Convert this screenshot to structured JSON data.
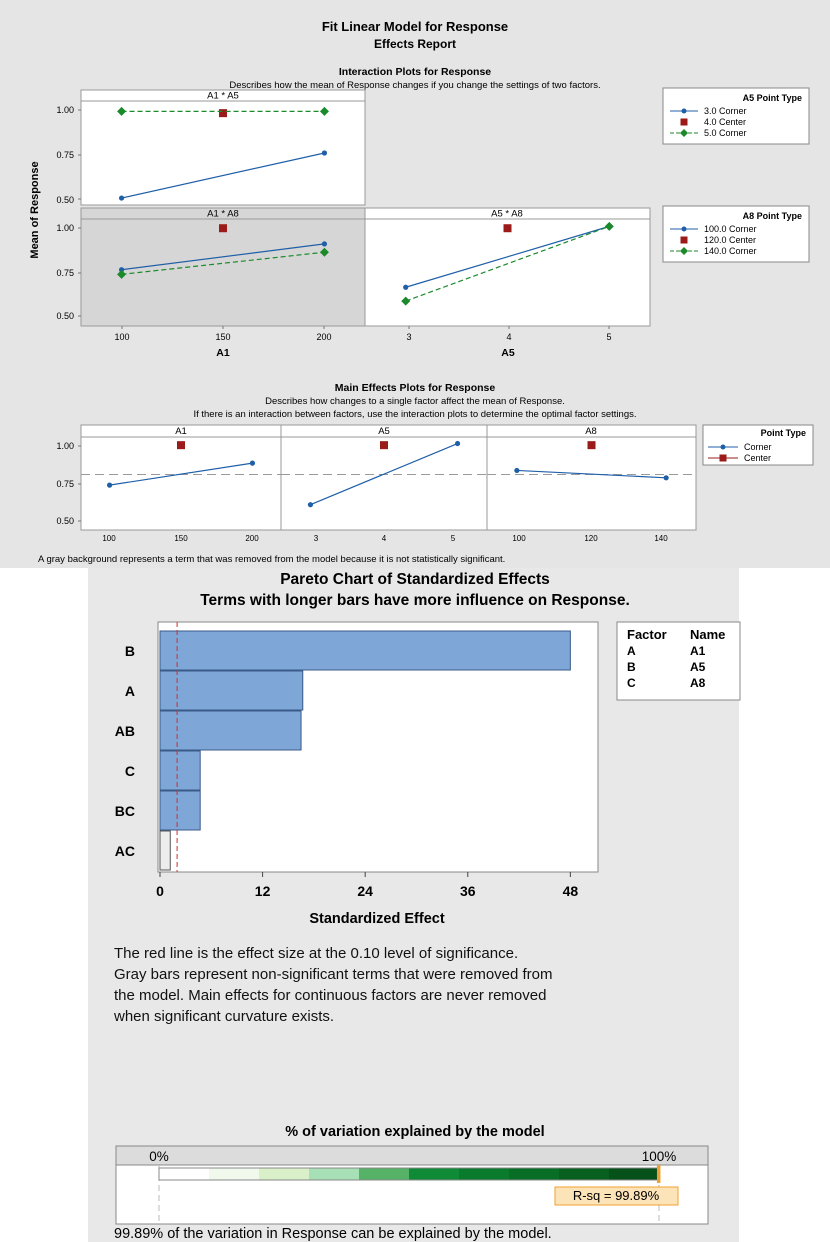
{
  "report": {
    "title": "Fit Linear Model for Response",
    "subtitle": "Effects Report",
    "footnote": "A gray background represents a term that was removed from the model because it is not statistically significant."
  },
  "interaction": {
    "title": "Interaction Plots for Response",
    "description": "Describes how the mean of Response changes if you change the settings of two factors.",
    "ylabel": "Mean of Response",
    "yticks": [
      "1.00",
      "0.75",
      "0.50"
    ],
    "panels": {
      "a1a5": {
        "title": "A1 * A5",
        "xrange": [
          80,
          220
        ],
        "removed": false
      },
      "a1a8": {
        "title": "A1 * A8",
        "xrange": [
          80,
          220
        ],
        "removed": true
      },
      "a5a8": {
        "title": "A5 * A8",
        "xrange": [
          2.6,
          5.4
        ],
        "removed": false
      }
    },
    "xaxis_a1": {
      "label": "A1",
      "ticks": [
        "100",
        "150",
        "200"
      ]
    },
    "xaxis_a5": {
      "label": "A5",
      "ticks": [
        "3",
        "4",
        "5"
      ]
    },
    "legend_a5": {
      "title": "A5  Point Type",
      "entries": [
        "3.0  Corner",
        "4.0  Center",
        "5.0  Corner"
      ]
    },
    "legend_a8": {
      "title": "A8  Point Type",
      "entries": [
        "100.0  Corner",
        "120.0  Center",
        "140.0  Corner"
      ]
    }
  },
  "main_effects": {
    "title": "Main Effects Plots for Response",
    "description1": "Describes how changes to a single factor affect the mean of Response.",
    "description2": "If there is an interaction between factors, use the interaction plots to determine the optimal factor settings.",
    "yticks": [
      "1.00",
      "0.75",
      "0.50"
    ],
    "panels": [
      {
        "title": "A1",
        "ticks": [
          "100",
          "150",
          "200"
        ]
      },
      {
        "title": "A5",
        "ticks": [
          "3",
          "4",
          "5"
        ]
      },
      {
        "title": "A8",
        "ticks": [
          "100",
          "120",
          "140"
        ]
      }
    ],
    "legend": {
      "title": "Point Type",
      "entries": [
        "Corner",
        "Center"
      ]
    }
  },
  "pareto": {
    "title": "Pareto Chart of Standardized Effects",
    "subtitle": "Terms with longer bars have more influence on Response.",
    "xlabel": "Standardized Effect",
    "xticks": [
      "0",
      "12",
      "24",
      "36",
      "48"
    ],
    "factor_table": {
      "headers": [
        "Factor",
        "Name"
      ],
      "rows": [
        [
          "A",
          "A1"
        ],
        [
          "B",
          "A5"
        ],
        [
          "C",
          "A8"
        ]
      ]
    },
    "notes": [
      "The red line is the effect size at the 0.10 level of significance.",
      "Gray bars represent non-significant terms that were removed from",
      "the model. Main effects for continuous factors are never removed",
      "when significant curvature exists."
    ]
  },
  "variation": {
    "title": "% of variation explained by the model",
    "min_label": "0%",
    "max_label": "100%",
    "rsq_label": "R-sq = 99.89%",
    "rsq_value": 99.89,
    "footer": "99.89% of the variation in Response can be explained by the model."
  },
  "colors": {
    "blue_series": "#1f5fa8",
    "red_series": "#9b1b1b",
    "green_series": "#1a8a2a",
    "pareto_bar": "#7ea6d6",
    "pareto_bar_gray": "#ededed",
    "orange": "#f0a030"
  },
  "chart_data": [
    {
      "type": "line",
      "title": "A1 * A5",
      "xlabel": "A1",
      "ylabel": "Mean of Response",
      "xlim": [
        80,
        220
      ],
      "ylim": [
        0.46,
        1.06
      ],
      "series": [
        {
          "name": "3.0 Corner",
          "x": [
            100,
            200
          ],
          "y": [
            0.5,
            0.76
          ]
        },
        {
          "name": "4.0 Center",
          "x": [
            150
          ],
          "y": [
            0.99
          ]
        },
        {
          "name": "5.0 Corner",
          "x": [
            100,
            200
          ],
          "y": [
            1.0,
            1.0
          ]
        }
      ]
    },
    {
      "type": "line",
      "title": "A1 * A8",
      "xlabel": "A1",
      "ylabel": "Mean of Response",
      "xlim": [
        80,
        220
      ],
      "ylim": [
        0.46,
        1.04
      ],
      "series": [
        {
          "name": "100.0 Corner",
          "x": [
            100,
            200
          ],
          "y": [
            0.765,
            0.905
          ]
        },
        {
          "name": "120.0 Center",
          "x": [
            150
          ],
          "y": [
            0.99
          ]
        },
        {
          "name": "140.0 Corner",
          "x": [
            100,
            200
          ],
          "y": [
            0.74,
            0.86
          ]
        }
      ]
    },
    {
      "type": "line",
      "title": "A5 * A8",
      "xlabel": "A5",
      "xlim": [
        2.6,
        5.4
      ],
      "ylim": [
        0.46,
        1.04
      ],
      "series": [
        {
          "name": "100.0 Corner",
          "x": [
            3,
            5
          ],
          "y": [
            0.67,
            1.0
          ]
        },
        {
          "name": "120.0 Center",
          "x": [
            4
          ],
          "y": [
            0.99
          ]
        },
        {
          "name": "140.0 Corner",
          "x": [
            3,
            5
          ],
          "y": [
            0.595,
            1.0
          ]
        }
      ]
    },
    {
      "type": "line",
      "title": "A1",
      "xlim": [
        80,
        220
      ],
      "ylim": [
        0.47,
        1.04
      ],
      "reference_line": 0.81,
      "series": [
        {
          "name": "Corner",
          "x": [
            100,
            200
          ],
          "y": [
            0.745,
            0.88
          ]
        },
        {
          "name": "Center",
          "x": [
            150
          ],
          "y": [
            0.99
          ]
        }
      ]
    },
    {
      "type": "line",
      "title": "A5",
      "xlim": [
        2.6,
        5.4
      ],
      "ylim": [
        0.47,
        1.04
      ],
      "reference_line": 0.81,
      "series": [
        {
          "name": "Corner",
          "x": [
            3,
            5
          ],
          "y": [
            0.625,
            1.0
          ]
        },
        {
          "name": "Center",
          "x": [
            4
          ],
          "y": [
            0.99
          ]
        }
      ]
    },
    {
      "type": "line",
      "title": "A8",
      "xlim": [
        92,
        148
      ],
      "ylim": [
        0.47,
        1.04
      ],
      "reference_line": 0.81,
      "series": [
        {
          "name": "Corner",
          "x": [
            100,
            140
          ],
          "y": [
            0.835,
            0.79
          ]
        },
        {
          "name": "Center",
          "x": [
            120
          ],
          "y": [
            0.99
          ]
        }
      ]
    },
    {
      "type": "bar",
      "orientation": "horizontal",
      "title": "Pareto Chart of Standardized Effects",
      "xlabel": "Standardized Effect",
      "categories": [
        "B",
        "A",
        "AB",
        "C",
        "BC",
        "AC"
      ],
      "values": [
        48.0,
        16.7,
        16.5,
        4.7,
        4.7,
        1.2
      ],
      "significant": [
        true,
        true,
        true,
        true,
        true,
        false
      ],
      "reference_line": 2.0,
      "xlim": [
        0,
        51
      ]
    },
    {
      "type": "bar",
      "orientation": "horizontal",
      "title": "% of variation explained by the model",
      "values": [
        99.89
      ],
      "xlim": [
        0,
        100
      ]
    }
  ]
}
